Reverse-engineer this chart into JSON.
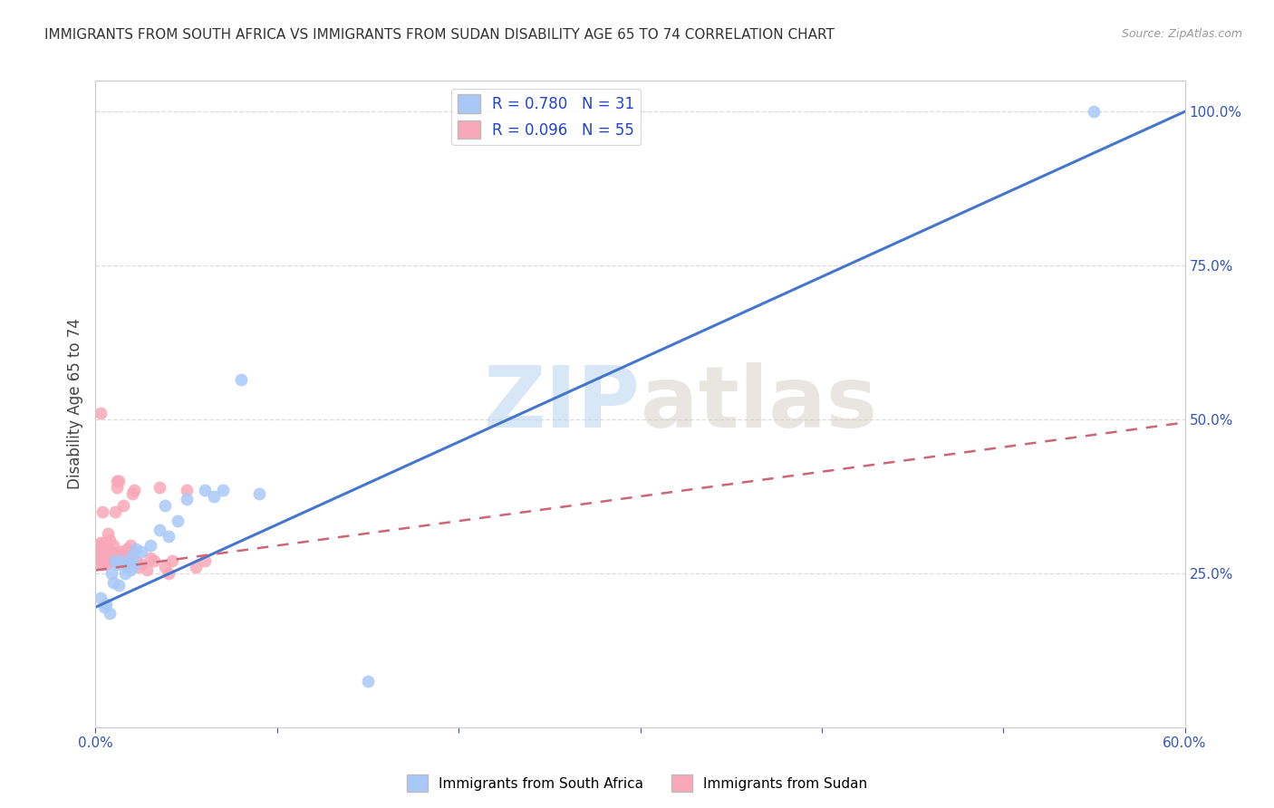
{
  "title": "IMMIGRANTS FROM SOUTH AFRICA VS IMMIGRANTS FROM SUDAN DISABILITY AGE 65 TO 74 CORRELATION CHART",
  "source": "Source: ZipAtlas.com",
  "ylabel": "Disability Age 65 to 74",
  "xmin": 0.0,
  "xmax": 0.6,
  "ymin": 0.0,
  "ymax": 1.05,
  "color_sa": "#a8c8f8",
  "color_sudan": "#f8a8b8",
  "line_color_sa": "#4477cc",
  "line_color_sudan": "#cc6677",
  "R_sa": 0.78,
  "N_sa": 31,
  "R_sudan": 0.096,
  "N_sudan": 55,
  "sa_line_x0": 0.0,
  "sa_line_y0": 0.195,
  "sa_line_x1": 0.6,
  "sa_line_y1": 1.0,
  "sudan_line_x0": 0.0,
  "sudan_line_y0": 0.255,
  "sudan_line_x1": 0.6,
  "sudan_line_y1": 0.495,
  "scatter_sa_x": [
    0.003,
    0.005,
    0.006,
    0.008,
    0.009,
    0.01,
    0.011,
    0.012,
    0.013,
    0.015,
    0.016,
    0.017,
    0.018,
    0.019,
    0.02,
    0.021,
    0.022,
    0.025,
    0.03,
    0.035,
    0.038,
    0.04,
    0.045,
    0.05,
    0.06,
    0.065,
    0.07,
    0.08,
    0.09,
    0.15,
    0.55
  ],
  "scatter_sa_y": [
    0.21,
    0.195,
    0.2,
    0.185,
    0.25,
    0.235,
    0.27,
    0.265,
    0.23,
    0.27,
    0.25,
    0.26,
    0.265,
    0.255,
    0.28,
    0.265,
    0.29,
    0.285,
    0.295,
    0.32,
    0.36,
    0.31,
    0.335,
    0.37,
    0.385,
    0.375,
    0.385,
    0.565,
    0.38,
    0.075,
    1.0
  ],
  "scatter_sudan_x": [
    0.001,
    0.001,
    0.002,
    0.002,
    0.003,
    0.003,
    0.003,
    0.004,
    0.004,
    0.004,
    0.005,
    0.005,
    0.005,
    0.006,
    0.006,
    0.006,
    0.007,
    0.007,
    0.007,
    0.008,
    0.008,
    0.008,
    0.009,
    0.009,
    0.01,
    0.01,
    0.011,
    0.011,
    0.012,
    0.012,
    0.013,
    0.013,
    0.014,
    0.015,
    0.015,
    0.016,
    0.017,
    0.018,
    0.019,
    0.02,
    0.02,
    0.021,
    0.022,
    0.023,
    0.025,
    0.028,
    0.03,
    0.032,
    0.035,
    0.038,
    0.04,
    0.042,
    0.05,
    0.055,
    0.06
  ],
  "scatter_sudan_y": [
    0.28,
    0.295,
    0.27,
    0.285,
    0.265,
    0.3,
    0.51,
    0.265,
    0.29,
    0.35,
    0.27,
    0.285,
    0.3,
    0.265,
    0.28,
    0.3,
    0.275,
    0.285,
    0.315,
    0.27,
    0.28,
    0.305,
    0.27,
    0.285,
    0.28,
    0.295,
    0.28,
    0.35,
    0.39,
    0.4,
    0.28,
    0.4,
    0.285,
    0.36,
    0.28,
    0.285,
    0.29,
    0.28,
    0.295,
    0.285,
    0.38,
    0.385,
    0.27,
    0.26,
    0.265,
    0.255,
    0.275,
    0.27,
    0.39,
    0.26,
    0.25,
    0.27,
    0.385,
    0.26,
    0.27
  ],
  "background_color": "#ffffff",
  "grid_color": "#dddddd",
  "watermark_zip": "ZIP",
  "watermark_atlas": "atlas"
}
